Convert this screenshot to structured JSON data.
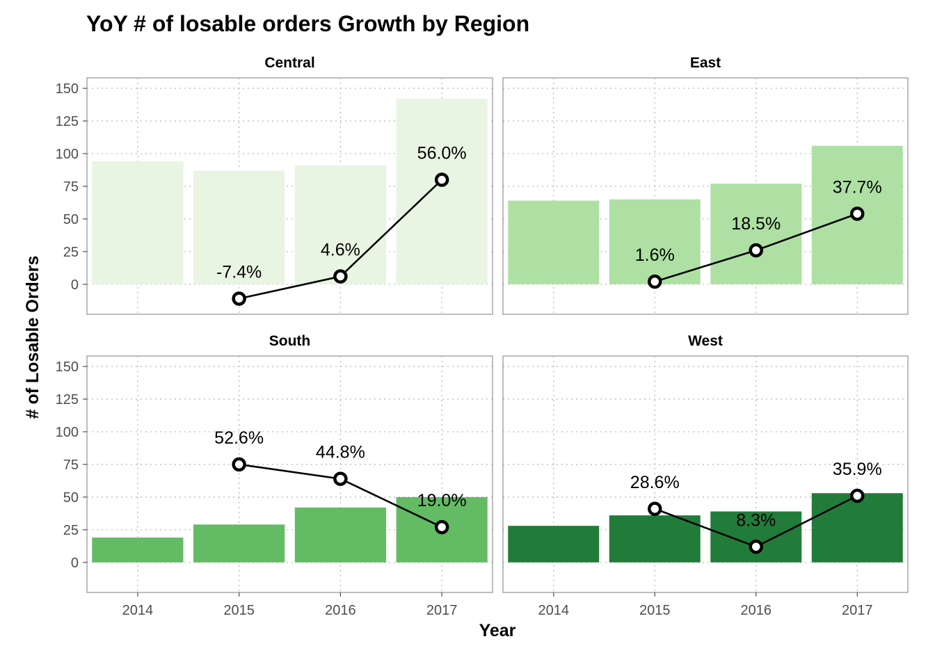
{
  "chart_data": {
    "type": "bar",
    "title": "YoY # of losable orders Growth by Region",
    "xlabel": "Year",
    "ylabel": "# of Losable Orders",
    "categories": [
      "2014",
      "2015",
      "2016",
      "2017"
    ],
    "y_ticks": [
      0,
      25,
      50,
      75,
      100,
      125,
      150
    ],
    "ylim": [
      -23,
      158
    ],
    "grid": true,
    "legend": "none",
    "panels": [
      {
        "name": "Central",
        "bar_color": "#e8f5e2",
        "bars": [
          94,
          87,
          91,
          142
        ],
        "growth_points": [
          null,
          -11,
          6,
          80
        ],
        "growth_labels": [
          "",
          "-7.4%",
          "4.6%",
          "56.0%"
        ]
      },
      {
        "name": "East",
        "bar_color": "#aee0a4",
        "bars": [
          64,
          65,
          77,
          106
        ],
        "growth_points": [
          null,
          2,
          26,
          54
        ],
        "growth_labels": [
          "",
          "1.6%",
          "18.5%",
          "37.7%"
        ]
      },
      {
        "name": "South",
        "bar_color": "#63bb64",
        "bars": [
          19,
          29,
          42,
          50
        ],
        "growth_points": [
          null,
          75,
          64,
          27
        ],
        "growth_labels": [
          "",
          "52.6%",
          "44.8%",
          "19.0%"
        ]
      },
      {
        "name": "West",
        "bar_color": "#217c3a",
        "bars": [
          28,
          36,
          39,
          53
        ],
        "growth_points": [
          null,
          41,
          12,
          51
        ],
        "growth_labels": [
          "",
          "28.6%",
          "8.3%",
          "35.9%"
        ]
      }
    ]
  }
}
